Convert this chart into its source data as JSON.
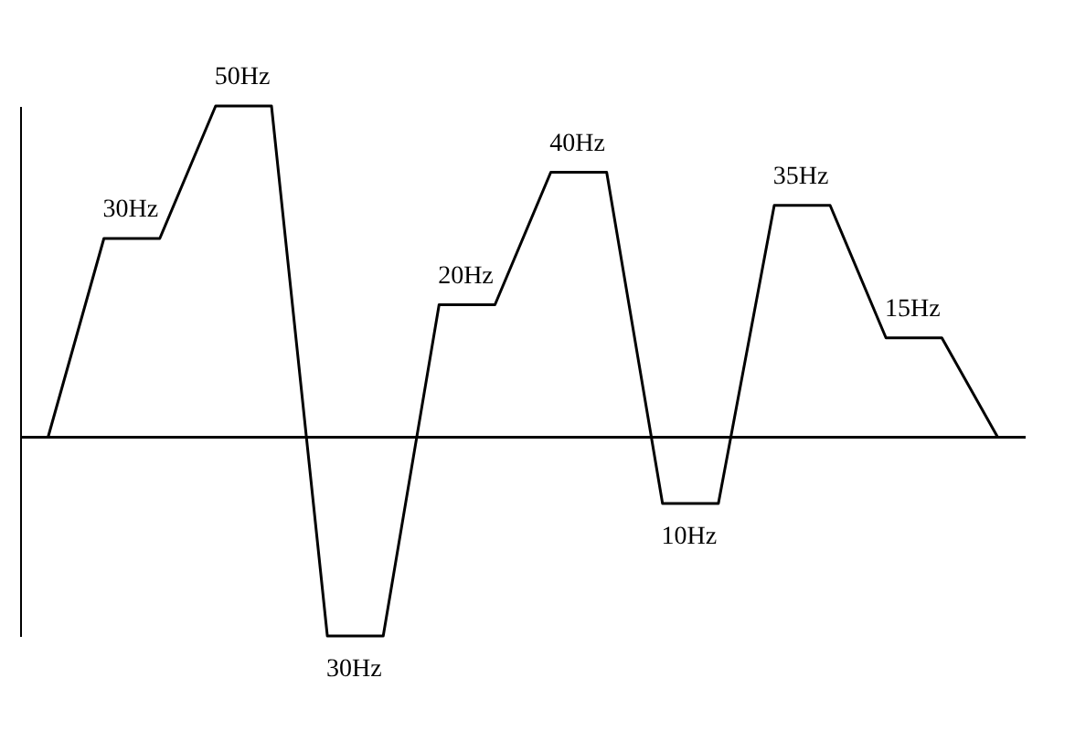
{
  "chart_data": {
    "type": "line",
    "categories": [
      null,
      null,
      null,
      null,
      null,
      null,
      null,
      null,
      null,
      null,
      null,
      null,
      null,
      null,
      null,
      null,
      null,
      null
    ],
    "series": [
      {
        "color": "#000000",
        "values": [
          0,
          30,
          30,
          50,
          50,
          -30,
          -30,
          20,
          20,
          40,
          40,
          -10,
          -10,
          35,
          35,
          15,
          15,
          0
        ],
        "value_labels": [
          null,
          null,
          "30Hz",
          null,
          "50Hz",
          null,
          null,
          null,
          "20Hz",
          null,
          "40Hz",
          null,
          null,
          null,
          "35Hz",
          null,
          "15Hz",
          null
        ]
      }
    ],
    "annotations": [
      {
        "text": "30Hz",
        "y": -30
      },
      {
        "text": "10Hz",
        "y": -10
      }
    ],
    "tick_labels": false,
    "grid": false,
    "legend": false,
    "marker": "none",
    "line_style": "solid"
  }
}
